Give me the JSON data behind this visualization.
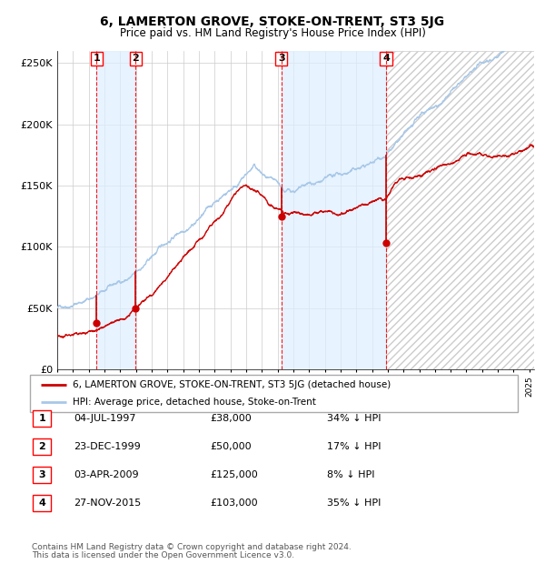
{
  "title": "6, LAMERTON GROVE, STOKE-ON-TRENT, ST3 5JG",
  "subtitle": "Price paid vs. HM Land Registry's House Price Index (HPI)",
  "title_fontsize": 10,
  "subtitle_fontsize": 8.5,
  "hpi_color": "#a8c8e8",
  "price_color": "#cc0000",
  "background_color": "#ffffff",
  "grid_color": "#cccccc",
  "shade_color": "#ddeeff",
  "hatch_color": "#e8e8e8",
  "ylim": [
    0,
    260000
  ],
  "yticks": [
    0,
    50000,
    100000,
    150000,
    200000,
    250000
  ],
  "ytick_labels": [
    "£0",
    "£50K",
    "£100K",
    "£150K",
    "£200K",
    "£250K"
  ],
  "xlim_start": 1995,
  "xlim_end": 2025.3,
  "sales": [
    {
      "label": "1",
      "date_str": "04-JUL-1997",
      "date_num": 1997.5,
      "price": 38000,
      "pct": "34%"
    },
    {
      "label": "2",
      "date_str": "23-DEC-1999",
      "date_num": 1999.98,
      "price": 50000,
      "pct": "17%"
    },
    {
      "label": "3",
      "date_str": "03-APR-2009",
      "date_num": 2009.25,
      "price": 125000,
      "pct": "8%"
    },
    {
      "label": "4",
      "date_str": "27-NOV-2015",
      "date_num": 2015.9,
      "price": 103000,
      "pct": "35%"
    }
  ],
  "legend_line1": "6, LAMERTON GROVE, STOKE-ON-TRENT, ST3 5JG (detached house)",
  "legend_line2": "HPI: Average price, detached house, Stoke-on-Trent",
  "table_rows": [
    [
      "1",
      "04-JUL-1997",
      "£38,000",
      "34% ↓ HPI"
    ],
    [
      "2",
      "23-DEC-1999",
      "£50,000",
      "17% ↓ HPI"
    ],
    [
      "3",
      "03-APR-2009",
      "£125,000",
      "8% ↓ HPI"
    ],
    [
      "4",
      "27-NOV-2015",
      "£103,000",
      "35% ↓ HPI"
    ]
  ],
  "footer_line1": "Contains HM Land Registry data © Crown copyright and database right 2024.",
  "footer_line2": "This data is licensed under the Open Government Licence v3.0."
}
